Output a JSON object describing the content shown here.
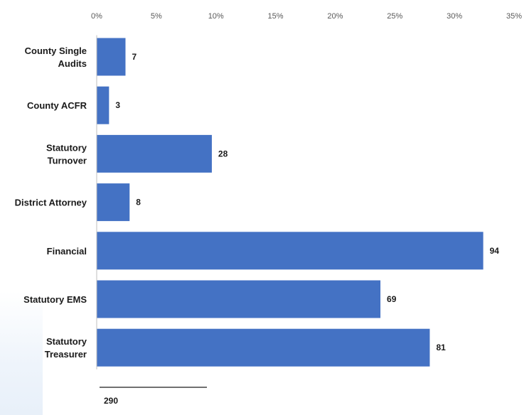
{
  "chart_data": {
    "type": "bar",
    "orientation": "horizontal",
    "categories": [
      [
        "County Single",
        "Audits"
      ],
      [
        "County ACFR"
      ],
      [
        "Statutory",
        "Turnover"
      ],
      [
        "District Attorney"
      ],
      [
        "Financial"
      ],
      [
        "Statutory EMS"
      ],
      [
        "Statutory",
        "Treasurer"
      ]
    ],
    "values": [
      7,
      3,
      28,
      8,
      94,
      69,
      81
    ],
    "total": 290,
    "x_axis": {
      "position": "top",
      "ticks": [
        0,
        5,
        10,
        15,
        20,
        25,
        30,
        35
      ],
      "tick_labels": [
        "0%",
        "5%",
        "10%",
        "15%",
        "20%",
        "25%",
        "30%",
        "35%"
      ],
      "range_percent": [
        0,
        35
      ]
    },
    "bar_color": "#4472c4",
    "grid": false,
    "legend": "none",
    "title": "",
    "xlabel": "",
    "ylabel": ""
  },
  "total_label": "290"
}
